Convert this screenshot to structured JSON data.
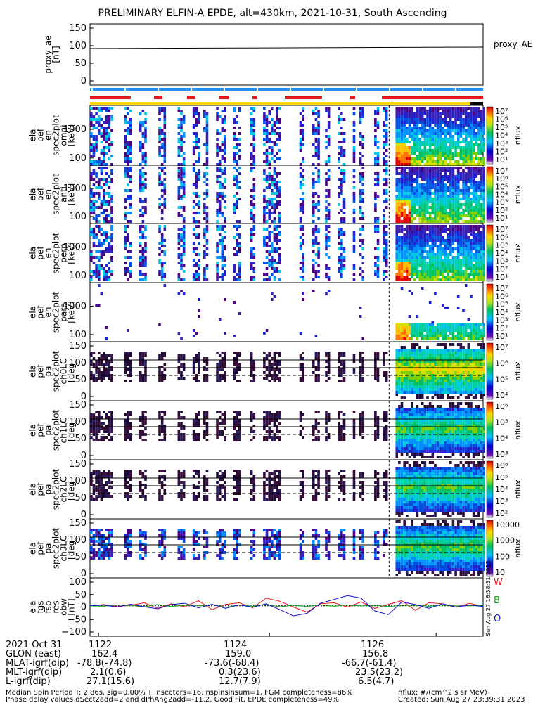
{
  "title": "PRELIMINARY ELFIN-A EPDE, alt=430km, 2021-10-31, South Ascending",
  "colors": {
    "red": "#e8141b",
    "blue": "#1e90ff",
    "yellow": "#ffd700",
    "black": "#000000"
  },
  "panels": [
    {
      "id": "proxy-ae",
      "ylabel": [
        "proxy_ae",
        "[nT]"
      ],
      "yticks": [
        "150",
        "100",
        "50",
        "0"
      ],
      "right_label": "proxy_AE"
    },
    {
      "id": "bars"
    },
    {
      "id": "omni",
      "ylabel": [
        "ela",
        "pef",
        "en",
        "spec2plot",
        "omni",
        "[keV]"
      ],
      "yticks": [
        "1000",
        "100"
      ],
      "colorbar": {
        "ticks": [
          "10⁷",
          "10⁶",
          "10⁵",
          "10⁴",
          "10³",
          "10²",
          "10¹"
        ],
        "label": "nflux"
      }
    },
    {
      "id": "anti",
      "ylabel": [
        "ela",
        "pef",
        "en",
        "spec2plot",
        "anti",
        "[keV]"
      ],
      "yticks": [
        "1000",
        "100"
      ],
      "colorbar": {
        "ticks": [
          "10⁷",
          "10⁶",
          "10⁵",
          "10⁴",
          "10³",
          "10²",
          "10¹"
        ],
        "label": "nflux"
      }
    },
    {
      "id": "perp",
      "ylabel": [
        "ela",
        "pef",
        "en",
        "spec2plot",
        "perp",
        "[keV]"
      ],
      "yticks": [
        "1000",
        "100"
      ],
      "colorbar": {
        "ticks": [
          "10⁷",
          "10⁶",
          "10⁵",
          "10⁴",
          "10³",
          "10²",
          "10¹"
        ],
        "label": "nflux"
      }
    },
    {
      "id": "para",
      "ylabel": [
        "ela",
        "pef",
        "en",
        "spec2plot",
        "para",
        "[keV]"
      ],
      "yticks": [
        "1000",
        "100"
      ],
      "colorbar": {
        "ticks": [
          "10⁷",
          "10⁶",
          "10⁵",
          "10⁴",
          "10³",
          "10²",
          "10¹"
        ],
        "label": "nflux"
      }
    },
    {
      "id": "ch0",
      "ylabel": [
        "ela",
        "pef",
        "pa",
        "spec2plot",
        "ch0LC",
        "[deg]"
      ],
      "yticks": [
        "150",
        "100",
        "50",
        "0"
      ],
      "colorbar": {
        "ticks": [
          "10⁷",
          "10⁶",
          "10⁵",
          "10⁴"
        ],
        "label": "nflux"
      }
    },
    {
      "id": "ch1",
      "ylabel": [
        "ela",
        "pef",
        "pa",
        "spec2plot",
        "ch1LC",
        "[deg]"
      ],
      "yticks": [
        "150",
        "100",
        "50",
        "0"
      ],
      "colorbar": {
        "ticks": [
          "10⁶",
          "10⁵",
          "10⁴",
          "10³"
        ],
        "label": "nflux"
      }
    },
    {
      "id": "ch2",
      "ylabel": [
        "ela",
        "pef",
        "pa",
        "spec2plot",
        "ch2LC",
        "[deg]"
      ],
      "yticks": [
        "150",
        "100",
        "50",
        "0"
      ],
      "colorbar": {
        "ticks": [
          "10⁶",
          "10⁵",
          "10⁴",
          "10³",
          "10²"
        ],
        "label": "nflux"
      }
    },
    {
      "id": "ch3",
      "ylabel": [
        "ela",
        "pef",
        "pa",
        "spec2plot",
        "ch3LC",
        "[deg]"
      ],
      "yticks": [
        "150",
        "100",
        "50",
        "0"
      ],
      "colorbar": {
        "ticks": [
          "10000",
          "1000",
          "100",
          "10"
        ],
        "label": "nflux"
      }
    },
    {
      "id": "fgs",
      "ylabel": [
        "ela",
        "fgs",
        "fsp",
        "res",
        "obw",
        "[nT]"
      ],
      "yticks": [
        "100",
        "50",
        "0",
        "−50",
        "−100"
      ],
      "legend": [
        "W",
        "B",
        "O"
      ]
    }
  ],
  "side_stamp": "Sun Aug 27 16:38:31 2023",
  "footer": {
    "rows": [
      [
        "2021 Oct 31",
        "1122",
        "1124",
        "1126"
      ],
      [
        "GLON (east)",
        "162.4",
        "159.0",
        "156.8"
      ],
      [
        "MLAT-igrf(dip)",
        "-78.8(-74.8)",
        "-73.6(-68.4)",
        "-66.7(-61.4)"
      ],
      [
        "MLT-igrf(dip)",
        "2.1(0.6)",
        "0.3(23.6)",
        "23.5(23.2)"
      ],
      [
        "L-igrf(dip)",
        "27.1(15.6)",
        "12.7(7.9)",
        "6.5(4.7)"
      ]
    ],
    "note1": "Median Spin Period T: 2.86s, sig=0.00% T, nsectors=16, nspinsinsum=1, FGM completeness=86%",
    "note2": "Phase delay values dSect2add=2 and dPhAng2add=-11.2, Good Fit, EPDE completeness=49%",
    "units": "nflux: #/(cm^2 s sr MeV)",
    "created": "Created: Sun Aug 27 23:39:31 2023"
  },
  "chart_data": [
    {
      "type": "line",
      "name_in_plot": "proxy_AE",
      "ylabel": "proxy_ae [nT]",
      "ylim": [
        0,
        150
      ],
      "x": [
        "11:21",
        "11:27"
      ],
      "values": [
        92,
        96
      ]
    },
    {
      "type": "heatmap",
      "panel": "omni",
      "y_scale": "log",
      "ylim_keV": [
        60,
        7000
      ],
      "colorbar_range": [
        10,
        10000000
      ],
      "data_intervals_min": [
        [
          0.0,
          0.5
        ],
        [
          0.8,
          0.95
        ],
        [
          1.15,
          1.3
        ],
        [
          1.6,
          1.75
        ],
        [
          2.05,
          2.2
        ],
        [
          2.4,
          2.55
        ],
        [
          2.65,
          2.75
        ],
        [
          2.95,
          3.15
        ],
        [
          3.35,
          3.5
        ],
        [
          3.75,
          3.85
        ],
        [
          4.05,
          4.45
        ],
        [
          4.9,
          5.0
        ],
        [
          5.2,
          5.35
        ],
        [
          5.5,
          5.6
        ],
        [
          5.8,
          5.95
        ],
        [
          6.15,
          6.2
        ],
        [
          6.3,
          6.4
        ],
        [
          6.65,
          6.75
        ],
        [
          6.85,
          6.95
        ],
        [
          7.15,
          9.2
        ]
      ],
      "hot_patch": {
        "start_min": 7.15,
        "energy_peak_keV": 100
      }
    },
    {
      "type": "heatmap",
      "panel": "anti",
      "y_scale": "log",
      "ylim_keV": [
        60,
        7000
      ],
      "colorbar_range": [
        10,
        10000000
      ]
    },
    {
      "type": "heatmap",
      "panel": "perp",
      "y_scale": "log",
      "ylim_keV": [
        60,
        7000
      ],
      "colorbar_range": [
        10,
        10000000
      ]
    },
    {
      "type": "heatmap",
      "panel": "para",
      "y_scale": "log",
      "ylim_keV": [
        60,
        7000
      ],
      "colorbar_range": [
        10,
        10000000
      ]
    },
    {
      "type": "heatmap",
      "panel": "ch0LC",
      "ylim": [
        0,
        160
      ],
      "colorbar_range": [
        10000,
        10000000
      ]
    },
    {
      "type": "heatmap",
      "panel": "ch1LC",
      "ylim": [
        0,
        160
      ],
      "colorbar_range": [
        1000,
        1000000
      ]
    },
    {
      "type": "heatmap",
      "panel": "ch2LC",
      "ylim": [
        0,
        160
      ],
      "colorbar_range": [
        100,
        1000000
      ]
    },
    {
      "type": "heatmap",
      "panel": "ch3LC",
      "ylim": [
        0,
        160
      ],
      "colorbar_range": [
        10,
        10000
      ]
    },
    {
      "type": "line",
      "panel": "fgs",
      "ylim": [
        -120,
        110
      ],
      "series": [
        {
          "name": "W",
          "color": "#e8141b",
          "values": [
            0,
            5,
            -3,
            2,
            12,
            -10,
            8,
            -4,
            20,
            -15,
            5,
            12,
            -8,
            30,
            18,
            -5,
            -25,
            8,
            12,
            -5,
            15,
            -10,
            5,
            20,
            -18,
            12,
            8,
            -6,
            10,
            -4
          ]
        },
        {
          "name": "B",
          "color": "#12a012",
          "values": [
            0,
            -2,
            3,
            1,
            -4,
            5,
            -3,
            2,
            0,
            4,
            -6,
            3,
            -2,
            5,
            -4,
            2,
            -3,
            4,
            -2,
            3,
            -1,
            2,
            -3,
            1,
            2,
            -2,
            3,
            -1,
            0,
            2
          ]
        },
        {
          "name": "O",
          "color": "#1010d0",
          "values": [
            0,
            3,
            -5,
            6,
            -4,
            -12,
            5,
            10,
            -8,
            6,
            -10,
            4,
            -6,
            8,
            -15,
            -40,
            -30,
            10,
            25,
            40,
            30,
            -20,
            -35,
            15,
            5,
            -10,
            8,
            -5,
            3,
            -3
          ]
        }
      ]
    }
  ]
}
